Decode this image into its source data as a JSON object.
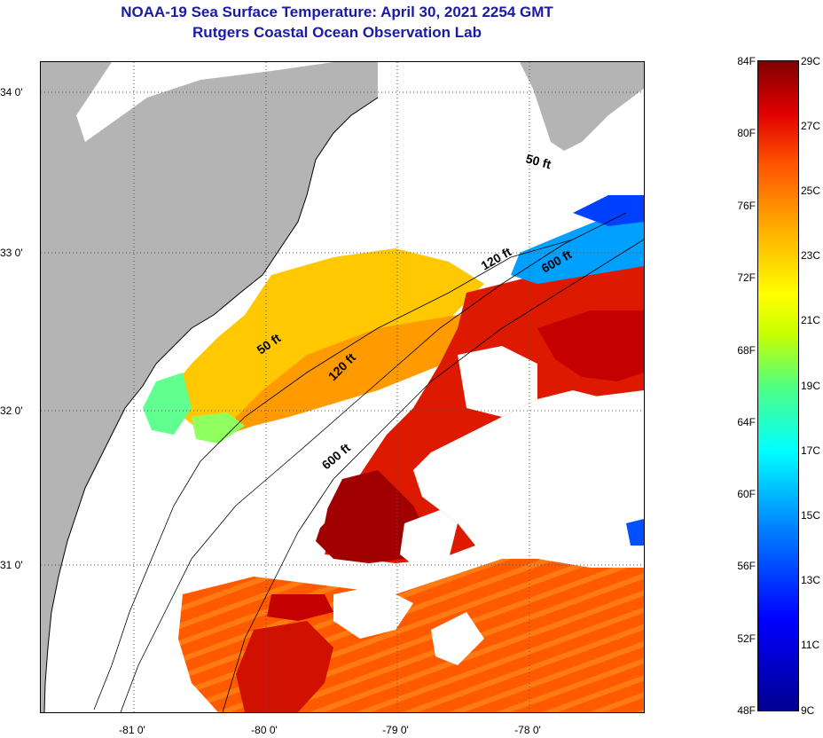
{
  "header": {
    "title": "NOAA-19 Sea Surface Temperature:  April 30, 2021 2254 GMT",
    "subtitle": "Rutgers Coastal Ocean Observation Lab"
  },
  "map": {
    "lat_labels": [
      "34 0'",
      "33 0'",
      "32 0'",
      "31 0'"
    ],
    "lon_labels": [
      "-81 0'",
      "-80 0'",
      "-79 0'",
      "-78 0'"
    ],
    "isobath_labels": [
      "50 ft",
      "120 ft",
      "600 ft",
      "50 ft",
      "120 ft",
      "600 ft"
    ],
    "colors": {
      "land": "#b4b4b4",
      "cloud": "#ffffff",
      "warm": "#cc0000",
      "hot": "#a00000",
      "orange": "#ff6a00",
      "yellow": "#ffc800",
      "cool": "#00c0ff"
    }
  },
  "colorbar": {
    "fahrenheit": [
      "84F",
      "80F",
      "76F",
      "72F",
      "68F",
      "64F",
      "60F",
      "56F",
      "52F",
      "48F"
    ],
    "celsius": [
      "29C",
      "27C",
      "25C",
      "23C",
      "21C",
      "19C",
      "17C",
      "15C",
      "13C",
      "11C",
      "9C"
    ]
  }
}
